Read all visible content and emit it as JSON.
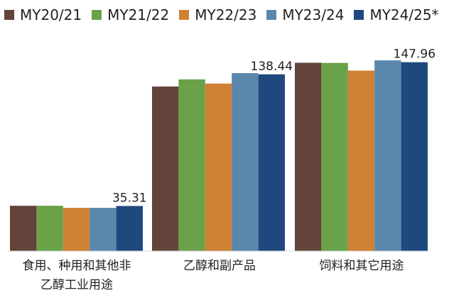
{
  "chart_data": {
    "type": "bar",
    "title": "",
    "xlabel": "",
    "ylabel": "",
    "categories": [
      "食用、种用和其他非乙醇工业用途",
      "乙醇和副产品",
      "饲料和其它用途"
    ],
    "category_lines": [
      [
        "食用、种用和其他非",
        "乙醇工业用途"
      ],
      [
        "乙醇和副产品"
      ],
      [
        "饲料和其它用途"
      ]
    ],
    "ylim": [
      0,
      160
    ],
    "grid": false,
    "legend_position": "top",
    "series": [
      {
        "name": "MY20/21",
        "color": "#62443a",
        "values": [
          35.5,
          128.9,
          147.5
        ]
      },
      {
        "name": "MY21/22",
        "color": "#6aa24a",
        "values": [
          35.5,
          134.5,
          147.4
        ]
      },
      {
        "name": "MY22/23",
        "color": "#cf8133",
        "values": [
          33.9,
          131.2,
          141.4
        ]
      },
      {
        "name": "MY23/24",
        "color": "#5b87ad",
        "values": [
          33.9,
          139.4,
          149.4
        ]
      },
      {
        "name": "MY24/25*",
        "color": "#1f487e",
        "values": [
          35.31,
          138.44,
          147.96
        ]
      }
    ],
    "data_labels": [
      {
        "series": 4,
        "category": 0,
        "text": "35.31"
      },
      {
        "series": 4,
        "category": 1,
        "text": "138.44"
      },
      {
        "series": 4,
        "category": 2,
        "text": "147.96"
      }
    ]
  }
}
